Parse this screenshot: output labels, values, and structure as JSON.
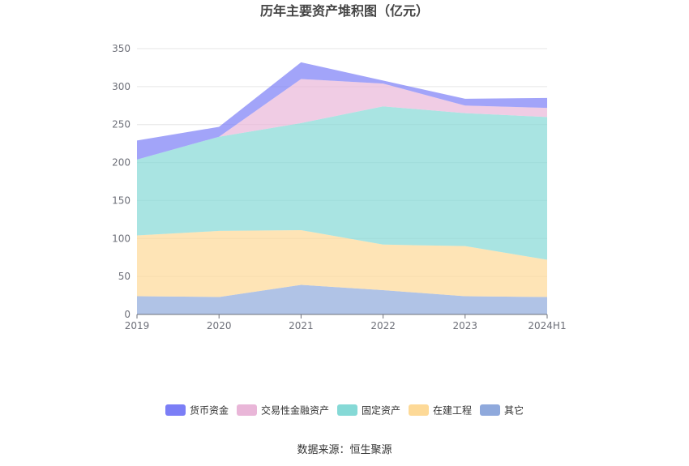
{
  "chart_data": {
    "type": "area",
    "stacked": true,
    "title": "历年主要资产堆积图（亿元）",
    "categories": [
      "2019",
      "2020",
      "2021",
      "2022",
      "2023",
      "2024H1"
    ],
    "y_ticks": [
      "0",
      "50",
      "100",
      "150",
      "200",
      "250",
      "300",
      "350"
    ],
    "ylim": [
      0,
      350
    ],
    "grid": true,
    "legend_position": "bottom",
    "series": [
      {
        "name": "其它",
        "color": "#8fa9dc",
        "values": [
          24,
          23,
          39,
          32,
          24,
          23
        ]
      },
      {
        "name": "在建工程",
        "color": "#fdd997",
        "values": [
          80,
          87,
          72,
          60,
          66,
          49
        ]
      },
      {
        "name": "固定资产",
        "color": "#85d9d6",
        "values": [
          100,
          124,
          141,
          182,
          175,
          188
        ]
      },
      {
        "name": "交易性金融资产",
        "color": "#e9b6d8",
        "values": [
          0,
          0,
          58,
          30,
          10,
          12
        ]
      },
      {
        "name": "货币资金",
        "color": "#7b7ef6",
        "values": [
          25,
          13,
          22,
          4,
          9,
          13
        ]
      }
    ],
    "legend_order": [
      "货币资金",
      "交易性金融资产",
      "固定资产",
      "在建工程",
      "其它"
    ],
    "source": "数据来源：恒生聚源"
  }
}
